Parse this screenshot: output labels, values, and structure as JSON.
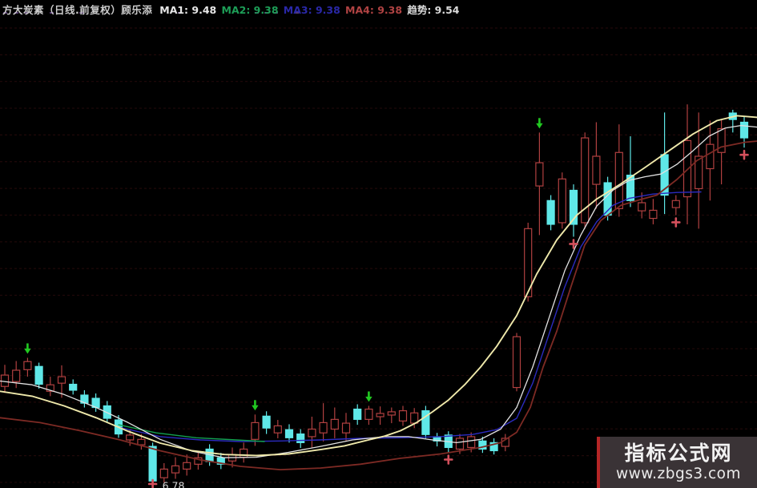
{
  "header": {
    "title": "方大炭素（日线.前复权）顾乐添",
    "title_color": "#cdcdcd",
    "indicators": [
      {
        "label": "MA1:",
        "value": "9.48",
        "color": "#e8e8e8"
      },
      {
        "label": "MA2:",
        "value": "9.38",
        "color": "#1d9e57"
      },
      {
        "label": "MA3:",
        "value": "9.38",
        "color": "#2a28a8"
      },
      {
        "label": "MA4:",
        "value": "9.38",
        "color": "#b04343"
      },
      {
        "label": "趋势:",
        "value": "9.54",
        "color": "#dcdcdc"
      }
    ],
    "tick_marks": {
      "xs": [
        4,
        18,
        31,
        62,
        99,
        222,
        318,
        330,
        342,
        368
      ],
      "color": "#6b4a8f"
    }
  },
  "watermark": {
    "site_name": "指标公式网",
    "site_url": "www.zbgs3.com",
    "accent_color": "#b52626",
    "bg_color": "#3a3336"
  },
  "chart_data": {
    "type": "candlestick",
    "title": "方大炭素 日线 前复权",
    "ylim": [
      6.65,
      15.4
    ],
    "grid": "horizontal-dotted",
    "low_price_label": {
      "text": "6.78",
      "candle_index": 13
    },
    "colors": {
      "up": "#b04040",
      "down": "#5fe8e8",
      "grid": "#200809",
      "ma_white": "#e2e2e2",
      "trend_yellow": "#efe9ab",
      "ma_blue": "#2b2bc0",
      "ma_red": "#7d2a24",
      "ma_green": "#12a050",
      "arrow_green": "#21c821",
      "mark_red": "#d4505c",
      "label": "#d8d8d8"
    },
    "candles": [
      [
        8.53,
        8.93,
        8.41,
        8.74
      ],
      [
        8.62,
        9.0,
        8.5,
        8.83
      ],
      [
        8.84,
        9.06,
        8.71,
        8.99
      ],
      [
        8.9,
        8.97,
        8.49,
        8.57
      ],
      [
        8.44,
        8.71,
        8.35,
        8.56
      ],
      [
        8.59,
        8.92,
        8.32,
        8.71
      ],
      [
        8.57,
        8.66,
        8.38,
        8.46
      ],
      [
        8.37,
        8.46,
        8.14,
        8.22
      ],
      [
        8.31,
        8.4,
        8.06,
        8.14
      ],
      [
        8.17,
        8.26,
        7.86,
        7.94
      ],
      [
        7.91,
        8.0,
        7.58,
        7.65
      ],
      [
        7.54,
        7.73,
        7.43,
        7.63
      ],
      [
        7.45,
        7.65,
        7.36,
        7.55
      ],
      [
        7.42,
        7.49,
        6.72,
        6.78
      ],
      [
        6.84,
        7.11,
        6.75,
        7.0
      ],
      [
        6.93,
        7.22,
        6.82,
        7.06
      ],
      [
        7.0,
        7.27,
        6.88,
        7.12
      ],
      [
        7.09,
        7.33,
        6.99,
        7.21
      ],
      [
        7.37,
        7.46,
        7.06,
        7.14
      ],
      [
        7.21,
        7.3,
        7.0,
        7.09
      ],
      [
        7.15,
        7.4,
        7.03,
        7.27
      ],
      [
        7.22,
        7.49,
        7.12,
        7.37
      ],
      [
        7.55,
        8.01,
        7.43,
        7.86
      ],
      [
        7.98,
        8.07,
        7.65,
        7.76
      ],
      [
        7.67,
        7.91,
        7.57,
        7.8
      ],
      [
        7.73,
        7.83,
        7.49,
        7.58
      ],
      [
        7.65,
        7.74,
        7.39,
        7.49
      ],
      [
        7.6,
        7.97,
        7.4,
        7.74
      ],
      [
        7.67,
        8.22,
        7.51,
        7.86
      ],
      [
        7.74,
        8.14,
        7.57,
        7.92
      ],
      [
        7.67,
        8.04,
        7.52,
        7.85
      ],
      [
        8.11,
        8.2,
        7.82,
        7.92
      ],
      [
        7.92,
        8.17,
        7.82,
        8.11
      ],
      [
        7.97,
        8.16,
        7.82,
        8.03
      ],
      [
        8.0,
        8.14,
        7.85,
        8.06
      ],
      [
        7.89,
        8.17,
        7.8,
        8.08
      ],
      [
        7.85,
        8.13,
        7.76,
        8.04
      ],
      [
        8.08,
        8.17,
        7.57,
        7.64
      ],
      [
        7.6,
        7.67,
        7.42,
        7.52
      ],
      [
        7.63,
        7.7,
        7.31,
        7.4
      ],
      [
        7.37,
        7.65,
        7.28,
        7.57
      ],
      [
        7.4,
        7.68,
        7.31,
        7.6
      ],
      [
        7.52,
        7.6,
        7.3,
        7.37
      ],
      [
        7.49,
        7.57,
        7.27,
        7.34
      ],
      [
        7.42,
        7.65,
        7.33,
        7.57
      ],
      [
        8.51,
        9.52,
        8.44,
        9.45
      ],
      [
        10.19,
        11.56,
        10.1,
        11.45
      ],
      [
        12.24,
        13.23,
        11.33,
        12.67
      ],
      [
        11.97,
        12.07,
        11.42,
        11.53
      ],
      [
        11.56,
        12.49,
        11.45,
        12.37
      ],
      [
        12.16,
        12.27,
        11.3,
        11.53
      ],
      [
        11.56,
        13.23,
        11.45,
        13.13
      ],
      [
        12.27,
        13.42,
        11.82,
        12.79
      ],
      [
        12.3,
        12.41,
        11.6,
        11.7
      ],
      [
        11.82,
        13.38,
        11.67,
        12.86
      ],
      [
        12.44,
        13.16,
        11.85,
        11.97
      ],
      [
        11.78,
        12.12,
        11.64,
        11.93
      ],
      [
        11.64,
        12.0,
        11.53,
        11.79
      ],
      [
        12.82,
        13.6,
        11.72,
        12.07
      ],
      [
        11.84,
        12.07,
        11.7,
        11.97
      ],
      [
        12.04,
        13.75,
        11.53,
        13.08
      ],
      [
        12.19,
        13.6,
        11.45,
        12.79
      ],
      [
        12.56,
        13.45,
        11.97,
        13.01
      ],
      [
        12.86,
        13.48,
        12.27,
        13.3
      ],
      [
        13.59,
        13.65,
        13.23,
        13.47
      ],
      [
        13.42,
        13.53,
        12.95,
        13.13
      ]
    ],
    "x_start": 6,
    "x_step": 14.2,
    "signals": {
      "green_down_arrows_at": [
        2,
        22,
        32,
        47
      ],
      "red_cross_marks_at": [
        13,
        39,
        50,
        59,
        65
      ]
    },
    "ma_lines": {
      "white": [
        [
          0,
          8.63
        ],
        [
          40,
          8.56
        ],
        [
          80,
          8.38
        ],
        [
          120,
          8.14
        ],
        [
          160,
          7.86
        ],
        [
          200,
          7.55
        ],
        [
          240,
          7.33
        ],
        [
          280,
          7.21
        ],
        [
          320,
          7.22
        ],
        [
          360,
          7.31
        ],
        [
          400,
          7.42
        ],
        [
          440,
          7.54
        ],
        [
          480,
          7.6
        ],
        [
          510,
          7.6
        ],
        [
          540,
          7.54
        ],
        [
          570,
          7.49
        ],
        [
          600,
          7.55
        ],
        [
          625,
          7.74
        ],
        [
          645,
          8.14
        ],
        [
          665,
          8.89
        ],
        [
          685,
          9.78
        ],
        [
          705,
          10.67
        ],
        [
          725,
          11.33
        ],
        [
          745,
          11.87
        ],
        [
          765,
          12.16
        ],
        [
          785,
          12.34
        ],
        [
          805,
          12.41
        ],
        [
          825,
          12.46
        ],
        [
          845,
          12.64
        ],
        [
          865,
          12.89
        ],
        [
          885,
          13.16
        ],
        [
          905,
          13.31
        ],
        [
          925,
          13.36
        ],
        [
          945,
          13.33
        ]
      ],
      "yellow_trend": [
        [
          0,
          8.44
        ],
        [
          40,
          8.35
        ],
        [
          80,
          8.17
        ],
        [
          120,
          7.95
        ],
        [
          160,
          7.7
        ],
        [
          200,
          7.48
        ],
        [
          240,
          7.34
        ],
        [
          280,
          7.27
        ],
        [
          320,
          7.25
        ],
        [
          360,
          7.28
        ],
        [
          400,
          7.36
        ],
        [
          430,
          7.43
        ],
        [
          460,
          7.54
        ],
        [
          480,
          7.61
        ],
        [
          500,
          7.71
        ],
        [
          520,
          7.86
        ],
        [
          540,
          8.06
        ],
        [
          560,
          8.28
        ],
        [
          580,
          8.56
        ],
        [
          600,
          8.89
        ],
        [
          620,
          9.27
        ],
        [
          645,
          9.84
        ],
        [
          670,
          10.61
        ],
        [
          695,
          11.24
        ],
        [
          720,
          11.7
        ],
        [
          745,
          12.0
        ],
        [
          775,
          12.28
        ],
        [
          805,
          12.58
        ],
        [
          835,
          12.89
        ],
        [
          865,
          13.2
        ],
        [
          895,
          13.45
        ],
        [
          920,
          13.54
        ],
        [
          945,
          13.51
        ]
      ],
      "blue": [
        [
          150,
          7.77
        ],
        [
          200,
          7.6
        ],
        [
          250,
          7.54
        ],
        [
          300,
          7.51
        ],
        [
          350,
          7.52
        ],
        [
          400,
          7.54
        ],
        [
          450,
          7.57
        ],
        [
          500,
          7.58
        ],
        [
          550,
          7.6
        ],
        [
          590,
          7.64
        ],
        [
          620,
          7.73
        ],
        [
          645,
          7.94
        ],
        [
          665,
          8.59
        ],
        [
          685,
          9.48
        ],
        [
          705,
          10.37
        ],
        [
          725,
          11.11
        ],
        [
          745,
          11.58
        ],
        [
          765,
          11.88
        ],
        [
          785,
          12.01
        ],
        [
          815,
          12.09
        ],
        [
          845,
          12.12
        ],
        [
          875,
          12.13
        ]
      ],
      "red": [
        [
          0,
          7.95
        ],
        [
          50,
          7.86
        ],
        [
          100,
          7.71
        ],
        [
          150,
          7.54
        ],
        [
          200,
          7.34
        ],
        [
          250,
          7.17
        ],
        [
          300,
          7.05
        ],
        [
          350,
          6.99
        ],
        [
          400,
          7.02
        ],
        [
          450,
          7.09
        ],
        [
          500,
          7.2
        ],
        [
          550,
          7.28
        ],
        [
          600,
          7.4
        ],
        [
          625,
          7.49
        ],
        [
          645,
          7.68
        ],
        [
          662,
          8.14
        ],
        [
          678,
          8.89
        ],
        [
          695,
          9.55
        ],
        [
          712,
          10.34
        ],
        [
          730,
          11.15
        ],
        [
          750,
          11.6
        ],
        [
          775,
          11.88
        ],
        [
          800,
          11.99
        ],
        [
          820,
          12.07
        ],
        [
          845,
          12.36
        ],
        [
          870,
          12.71
        ],
        [
          900,
          12.96
        ],
        [
          930,
          13.05
        ],
        [
          945,
          13.07
        ]
      ],
      "green": [
        [
          148,
          7.82
        ],
        [
          195,
          7.67
        ],
        [
          245,
          7.58
        ],
        [
          295,
          7.54
        ],
        [
          330,
          7.51
        ]
      ]
    }
  }
}
